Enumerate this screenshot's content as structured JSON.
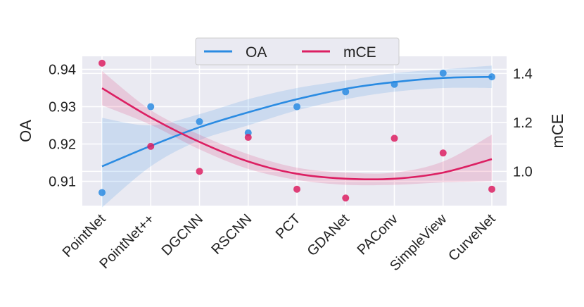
{
  "chart_data": {
    "type": "scatter",
    "categories": [
      "PointNet",
      "PointNet++",
      "DGCNN",
      "RSCNN",
      "PCT",
      "GDANet",
      "PAConv",
      "SimpleView",
      "CurveNet"
    ],
    "series": [
      {
        "name": "OA",
        "axis": "left",
        "color": "#2a8be2",
        "values": [
          0.907,
          0.93,
          0.926,
          0.923,
          0.93,
          0.934,
          0.936,
          0.939,
          0.938
        ],
        "fit_line": [
          0.914,
          0.9195,
          0.9245,
          0.9285,
          0.932,
          0.9348,
          0.9366,
          0.9377,
          0.938
        ],
        "ci_lower": [
          0.903,
          0.914,
          0.921,
          0.925,
          0.929,
          0.932,
          0.934,
          0.935,
          0.935
        ],
        "ci_upper": [
          0.927,
          0.925,
          0.928,
          0.932,
          0.935,
          0.937,
          0.939,
          0.94,
          0.941
        ]
      },
      {
        "name": "mCE",
        "axis": "right",
        "color": "#dc1f62",
        "values": [
          1.442,
          1.102,
          1.0,
          1.139,
          0.927,
          0.891,
          1.135,
          1.075,
          0.927
        ],
        "fit_line": [
          1.34,
          1.22,
          1.12,
          1.04,
          0.99,
          0.97,
          0.97,
          0.995,
          1.05
        ],
        "ci_lower": [
          1.27,
          1.19,
          1.09,
          1.01,
          0.965,
          0.945,
          0.945,
          0.955,
          0.96
        ],
        "ci_upper": [
          1.41,
          1.25,
          1.15,
          1.07,
          1.015,
          0.995,
          0.995,
          1.04,
          1.15
        ]
      }
    ],
    "ylabel_left": "OA",
    "ylabel_right": "mCE",
    "ylim_left": [
      0.9035,
      0.9435
    ],
    "ylim_right": [
      0.86,
      1.47
    ],
    "yticks_left": [
      "0.91",
      "0.92",
      "0.93",
      "0.94"
    ],
    "yticks_left_values": [
      0.91,
      0.92,
      0.93,
      0.94
    ],
    "yticks_right": [
      "1.0",
      "1.2",
      "1.4"
    ],
    "yticks_right_values": [
      1.0,
      1.2,
      1.4
    ],
    "legend": [
      "OA",
      "mCE"
    ],
    "legend_position": "top-center",
    "grid": true
  }
}
